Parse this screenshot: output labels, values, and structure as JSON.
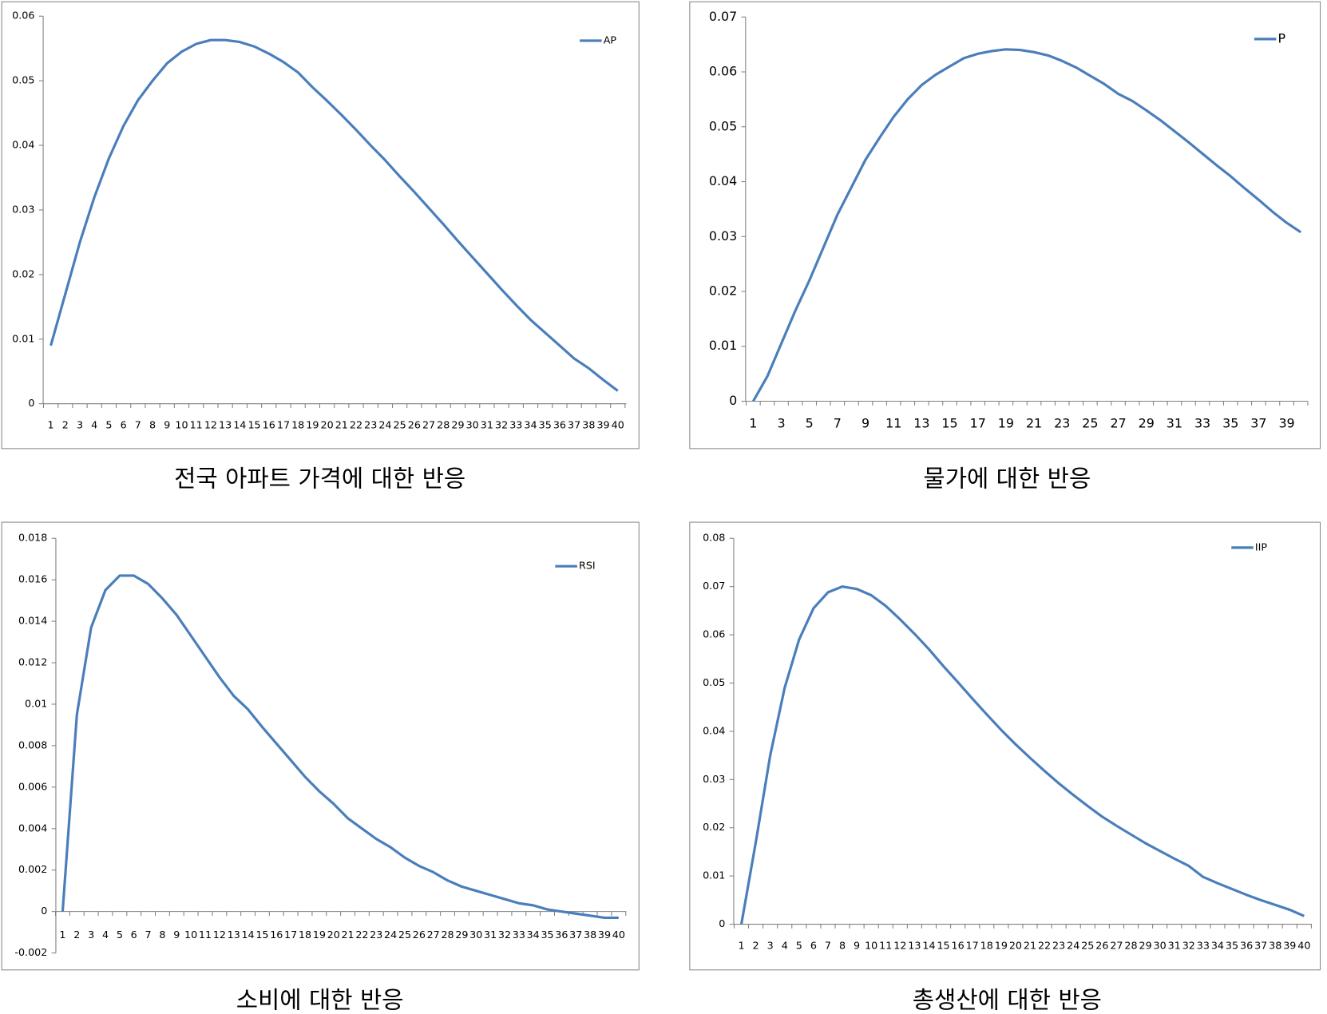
{
  "chart_data": [
    {
      "type": "line",
      "caption": "전국 아파트 가격에 대한 반응",
      "categories": [
        1,
        2,
        3,
        4,
        5,
        6,
        7,
        8,
        9,
        10,
        11,
        12,
        13,
        14,
        15,
        16,
        17,
        18,
        19,
        20,
        21,
        22,
        23,
        24,
        25,
        26,
        27,
        28,
        29,
        30,
        31,
        32,
        33,
        34,
        35,
        36,
        37,
        38,
        39,
        40
      ],
      "series": [
        {
          "name": "AP",
          "color": "#4a7ebb",
          "values": [
            0.009,
            0.017,
            0.025,
            0.032,
            0.038,
            0.043,
            0.047,
            0.05,
            0.0527,
            0.0545,
            0.0557,
            0.0563,
            0.0563,
            0.056,
            0.0553,
            0.0542,
            0.0529,
            0.0513,
            0.049,
            0.0469,
            0.0447,
            0.0424,
            0.04,
            0.0377,
            0.0352,
            0.0328,
            0.0303,
            0.0278,
            0.0252,
            0.0227,
            0.0202,
            0.0177,
            0.0153,
            0.013,
            0.011,
            0.009,
            0.007,
            0.0055,
            0.0037,
            0.002
          ]
        }
      ],
      "ylim": [
        0,
        0.06
      ],
      "yticks": [
        0,
        0.01,
        0.02,
        0.03,
        0.04,
        0.05,
        0.06
      ],
      "legend": "top-right"
    },
    {
      "type": "line",
      "caption": "물가에 대한 반응",
      "categories": [
        1,
        null,
        3,
        null,
        5,
        null,
        7,
        null,
        9,
        null,
        11,
        null,
        13,
        null,
        15,
        null,
        17,
        null,
        19,
        null,
        21,
        null,
        23,
        null,
        25,
        null,
        27,
        null,
        29,
        null,
        31,
        null,
        33,
        null,
        35,
        null,
        37,
        null,
        39,
        null
      ],
      "series": [
        {
          "name": "P",
          "color": "#4a7ebb",
          "values": [
            0,
            0.0045,
            0.0105,
            0.0165,
            0.022,
            0.028,
            0.034,
            0.039,
            0.044,
            0.048,
            0.0518,
            0.055,
            0.0576,
            0.0595,
            0.061,
            0.0625,
            0.0633,
            0.0638,
            0.0641,
            0.064,
            0.0636,
            0.063,
            0.062,
            0.0608,
            0.0593,
            0.0578,
            0.056,
            0.0547,
            0.053,
            0.0512,
            0.0492,
            0.0472,
            0.0451,
            0.043,
            0.041,
            0.0388,
            0.0367,
            0.0345,
            0.0325,
            0.0308
          ]
        }
      ],
      "ylim": [
        0,
        0.07
      ],
      "yticks": [
        0,
        0.01,
        0.02,
        0.03,
        0.04,
        0.05,
        0.06,
        0.07
      ],
      "legend": "top-right"
    },
    {
      "type": "line",
      "caption": "소비에 대한 반응",
      "categories": [
        1,
        2,
        3,
        4,
        5,
        6,
        7,
        8,
        9,
        10,
        11,
        12,
        13,
        14,
        15,
        16,
        17,
        18,
        19,
        20,
        21,
        22,
        23,
        24,
        25,
        26,
        27,
        28,
        29,
        30,
        31,
        32,
        33,
        34,
        35,
        36,
        37,
        38,
        39,
        40
      ],
      "series": [
        {
          "name": "RSI",
          "color": "#4a7ebb",
          "values": [
            0,
            0.0095,
            0.0137,
            0.0155,
            0.0162,
            0.0162,
            0.0158,
            0.0151,
            0.0143,
            0.0133,
            0.0123,
            0.0113,
            0.0104,
            0.00975,
            0.0089,
            0.0081,
            0.0073,
            0.0065,
            0.0058,
            0.0052,
            0.0045,
            0.004,
            0.0035,
            0.0031,
            0.0026,
            0.0022,
            0.0019,
            0.0015,
            0.0012,
            0.001,
            0.0008,
            0.0006,
            0.0004,
            0.0003,
            0.0001,
            0,
            -0.0001,
            -0.0002,
            -0.0003,
            -0.0003
          ]
        }
      ],
      "ylim": [
        -0.002,
        0.018
      ],
      "yticks": [
        -0.002,
        0,
        0.002,
        0.004,
        0.006,
        0.008,
        0.01,
        0.012,
        0.014,
        0.016,
        0.018
      ],
      "legend": "top-right"
    },
    {
      "type": "line",
      "caption": "총생산에 대한 반응",
      "categories": [
        1,
        2,
        3,
        4,
        5,
        6,
        7,
        8,
        9,
        10,
        11,
        12,
        13,
        14,
        15,
        16,
        17,
        18,
        19,
        20,
        21,
        22,
        23,
        24,
        25,
        26,
        27,
        28,
        29,
        30,
        31,
        32,
        33,
        34,
        35,
        36,
        37,
        38,
        39,
        40
      ],
      "series": [
        {
          "name": "IIP",
          "color": "#4a7ebb",
          "values": [
            0,
            0.017,
            0.035,
            0.049,
            0.059,
            0.0655,
            0.0688,
            0.07,
            0.0695,
            0.0682,
            0.066,
            0.0632,
            0.0602,
            0.057,
            0.0535,
            0.0502,
            0.0468,
            0.0435,
            0.0403,
            0.0373,
            0.0345,
            0.0318,
            0.0292,
            0.0268,
            0.0245,
            0.0223,
            0.0204,
            0.0186,
            0.0168,
            0.0152,
            0.0136,
            0.0121,
            0.0098,
            0.0085,
            0.0073,
            0.0061,
            0.005,
            0.004,
            0.003,
            0.0017
          ]
        }
      ],
      "ylim": [
        0,
        0.08
      ],
      "yticks": [
        0,
        0.01,
        0.02,
        0.03,
        0.04,
        0.05,
        0.06,
        0.07,
        0.08
      ],
      "legend": "top-right"
    }
  ]
}
